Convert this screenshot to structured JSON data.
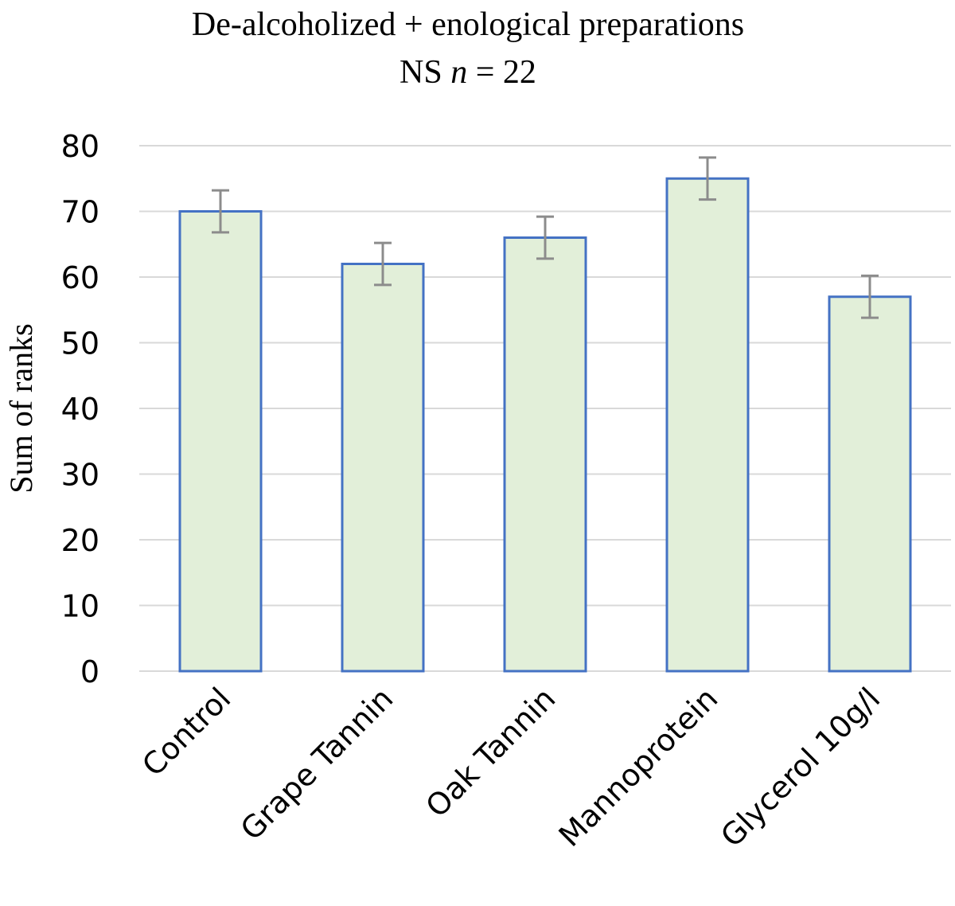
{
  "chart_data": {
    "type": "bar",
    "title_line1": "De-alcoholized + enological preparations",
    "title_line2_prefix": "NS ",
    "title_line2_italic": "n",
    "title_line2_suffix": " = 22",
    "ylabel": "Sum of ranks",
    "xlabel": "",
    "categories": [
      "Control",
      "Grape Tannin",
      "Oak Tannin",
      "Mannoprotein",
      "Glycerol 10g/l"
    ],
    "values": [
      70,
      62,
      66,
      75,
      57
    ],
    "error": [
      3.2,
      3.2,
      3.2,
      3.2,
      3.2
    ],
    "ylim": [
      0,
      80
    ],
    "yticks": [
      "0",
      "10",
      "20",
      "30",
      "40",
      "50",
      "60",
      "70",
      "80"
    ],
    "grid": true,
    "legend": "none",
    "colors": {
      "bar_fill": "#e2efd9",
      "bar_stroke": "#4472c4",
      "error_bar": "#8c8c8c",
      "grid": "#d9d9d9"
    }
  }
}
